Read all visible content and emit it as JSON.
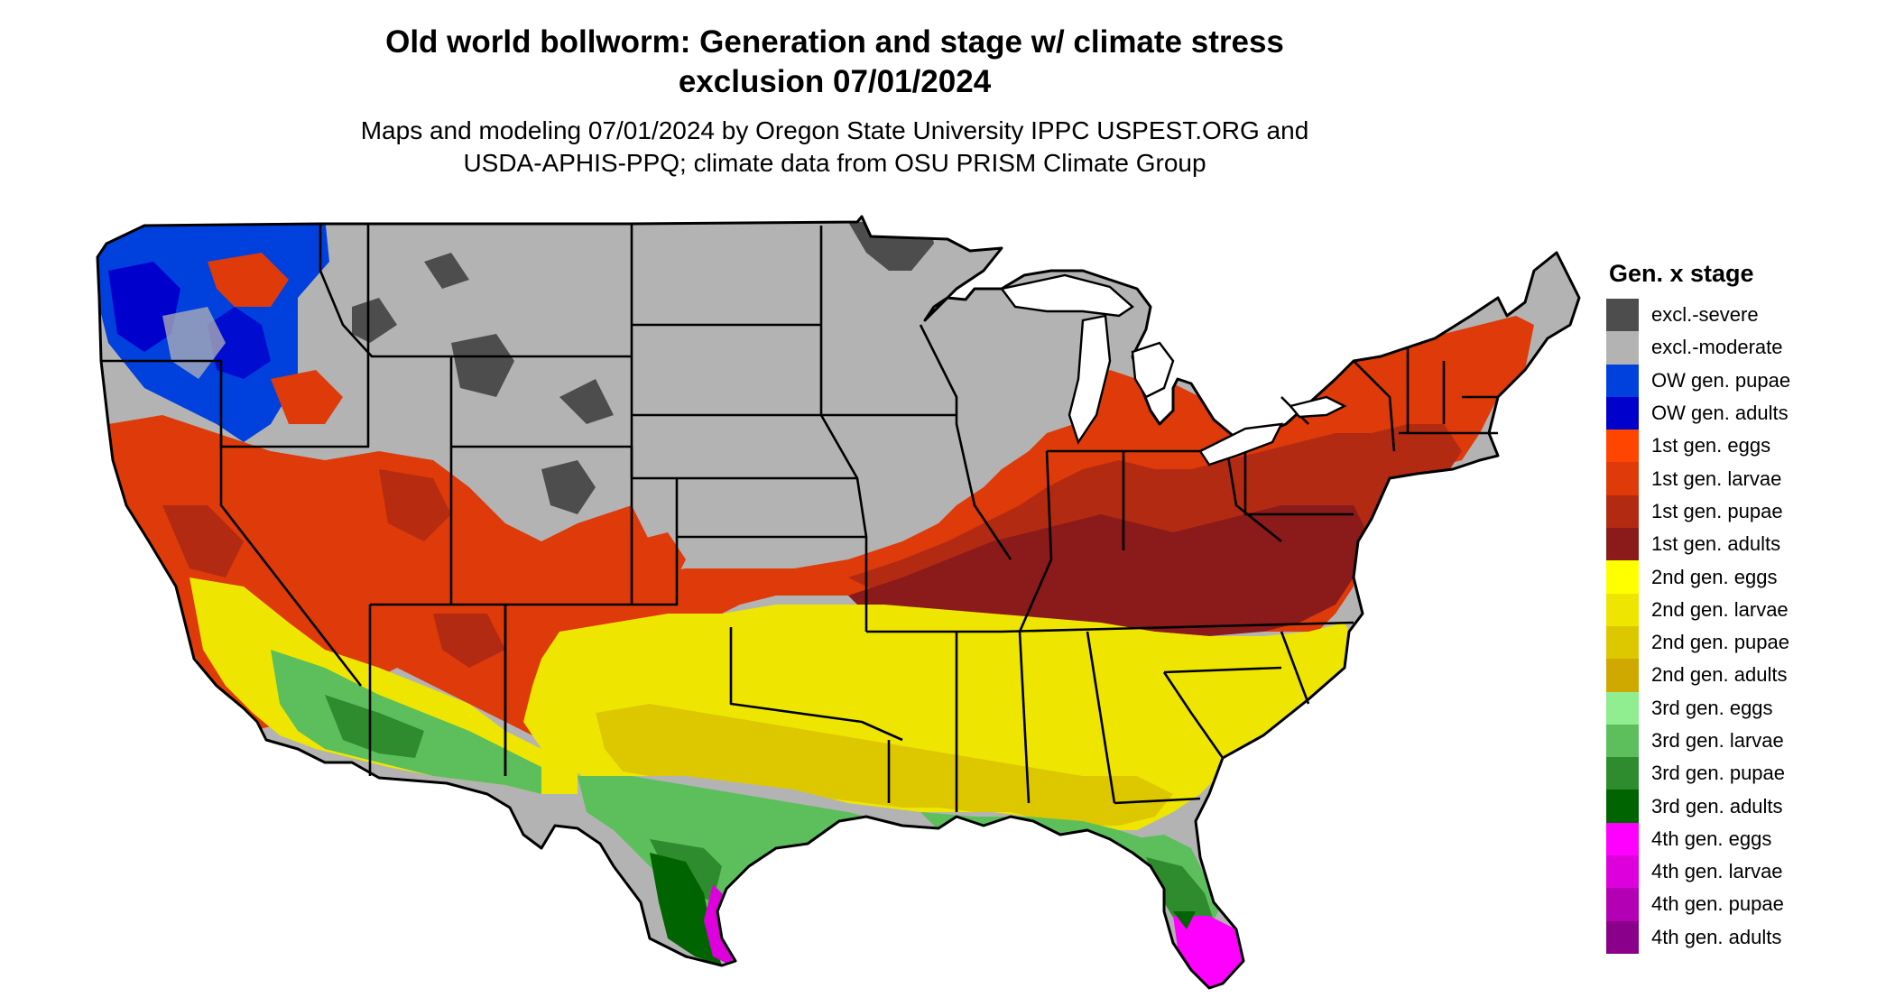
{
  "title": {
    "line1": "Old world bollworm: Generation and stage w/ climate stress",
    "line2": "exclusion 07/01/2024"
  },
  "subtitle": {
    "line1": "Maps and modeling 07/01/2024 by Oregon State University IPPC USPEST.ORG and",
    "line2": "USDA-APHIS-PPQ; climate data from OSU PRISM Climate Group"
  },
  "legend": {
    "title": "Gen. x stage",
    "items": [
      {
        "label": "excl.-severe",
        "color": "#4d4d4d"
      },
      {
        "label": "excl.-moderate",
        "color": "#b3b3b3"
      },
      {
        "label": "OW gen. pupae",
        "color": "#0040dd"
      },
      {
        "label": "OW gen. adults",
        "color": "#0000cd"
      },
      {
        "label": "1st gen. eggs",
        "color": "#ff4500"
      },
      {
        "label": "1st gen. larvae",
        "color": "#de3a0a"
      },
      {
        "label": "1st gen. pupae",
        "color": "#b22a12"
      },
      {
        "label": "1st gen. adults",
        "color": "#8b1a1a"
      },
      {
        "label": "2nd gen. eggs",
        "color": "#ffff00"
      },
      {
        "label": "2nd gen. larvae",
        "color": "#eee600"
      },
      {
        "label": "2nd gen. pupae",
        "color": "#ddc800"
      },
      {
        "label": "2nd gen. adults",
        "color": "#cfa800"
      },
      {
        "label": "3rd gen. eggs",
        "color": "#90ee90"
      },
      {
        "label": "3rd gen. larvae",
        "color": "#5cbf5c"
      },
      {
        "label": "3rd gen. pupae",
        "color": "#2e8b2e"
      },
      {
        "label": "3rd gen. adults",
        "color": "#006400"
      },
      {
        "label": "4th gen. eggs",
        "color": "#ff00ff"
      },
      {
        "label": "4th gen. larvae",
        "color": "#dd00dd"
      },
      {
        "label": "4th gen. pupae",
        "color": "#b400b4"
      },
      {
        "label": "4th gen. adults",
        "color": "#8b008b"
      }
    ]
  }
}
